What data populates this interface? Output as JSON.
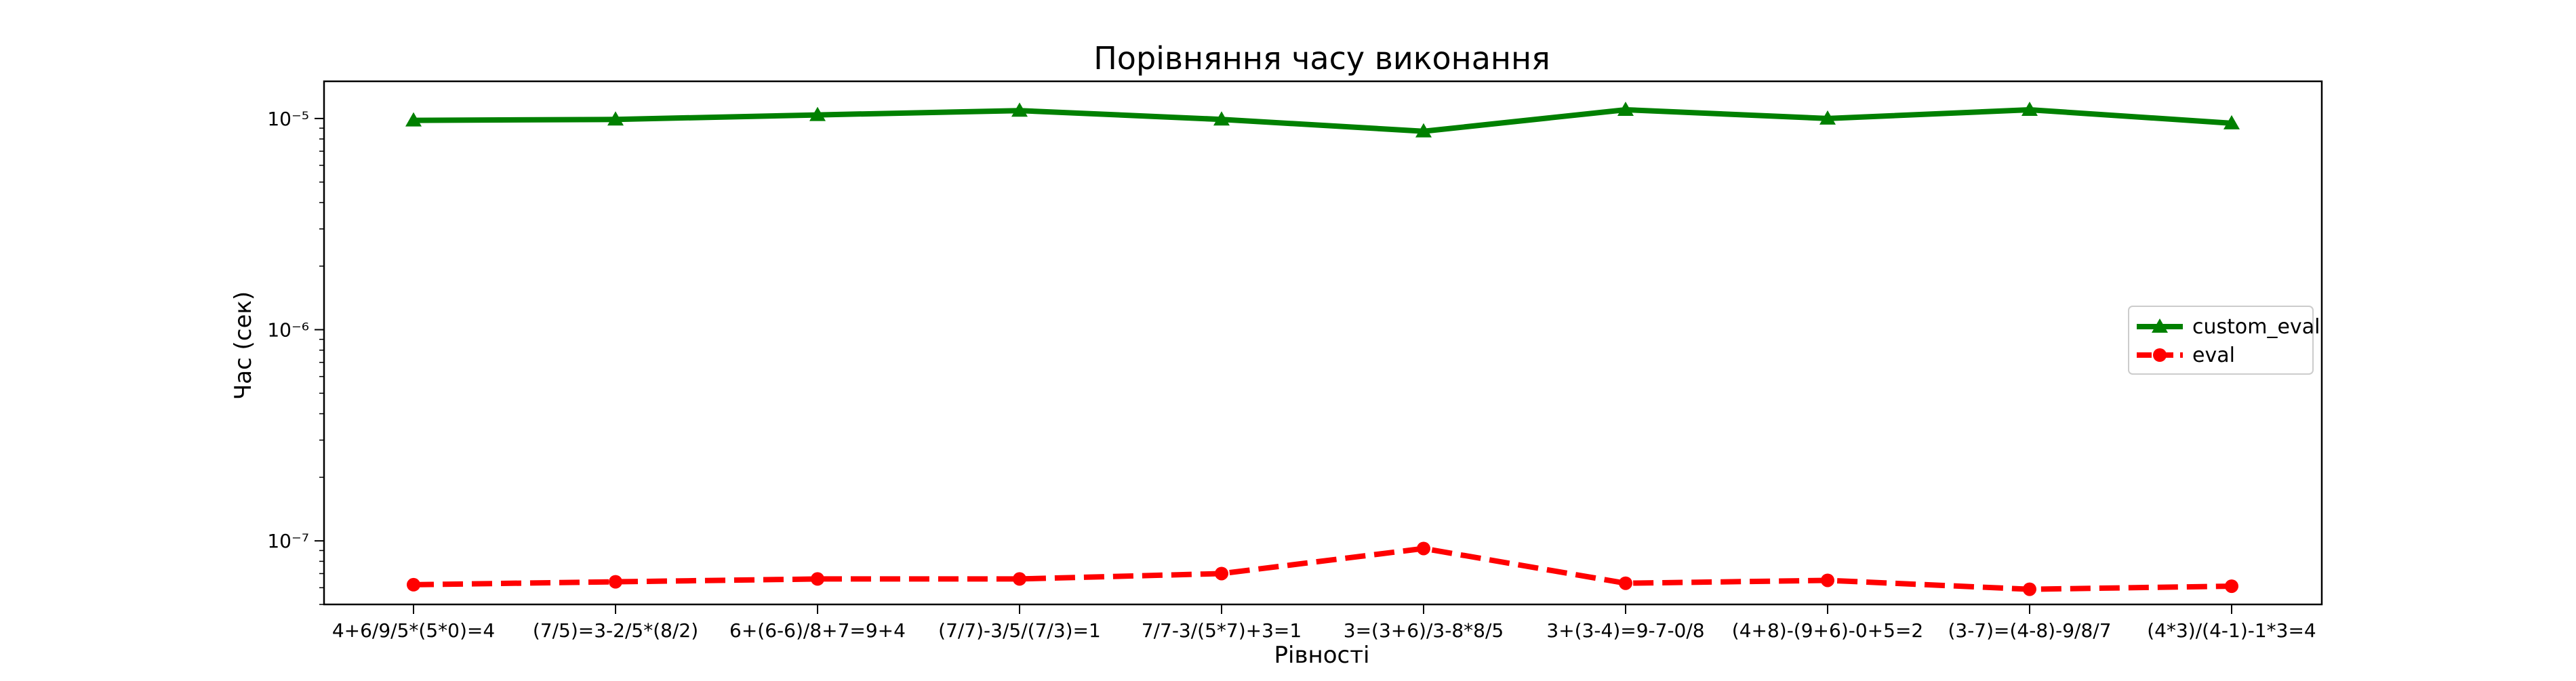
{
  "chart_data": {
    "type": "line",
    "title": "Порівняння часу виконання",
    "xlabel": "Рівності",
    "ylabel": "Час (сек)",
    "yscale": "log",
    "ylim": [
      5e-08,
      1.5e-05
    ],
    "y_tick_labels": [
      {
        "value": 1e-07,
        "label": "10⁻⁷"
      },
      {
        "value": 1e-06,
        "label": "10⁻⁶"
      },
      {
        "value": 1e-05,
        "label": "10⁻⁵"
      }
    ],
    "grid": false,
    "legend": {
      "placement": "center-right"
    },
    "categories": [
      "4+6/9/5*(5*0)=4",
      "(7/5)=3-2/5*(8/2)",
      "6+(6-6)/8+7=9+4",
      "(7/7)-3/5/(7/3)=1",
      "7/7-3/(5*7)+3=1",
      "3=(3+6)/3-8*8/5",
      "3+(3-4)=9-7-0/8",
      "(4+8)-(9+6)-0+5=2",
      "(3-7)=(4-8)-9/8/7",
      "(4*3)/(4-1)-1*3=4"
    ],
    "series": [
      {
        "name": "custom_eval",
        "color": "#008000",
        "marker": "triangle",
        "linestyle": "solid",
        "values": [
          9.8e-06,
          9.9e-06,
          1.04e-05,
          1.09e-05,
          9.9e-06,
          8.7e-06,
          1.1e-05,
          1e-05,
          1.1e-05,
          9.5e-06
        ]
      },
      {
        "name": "eval",
        "color": "#ff0000",
        "marker": "circle",
        "linestyle": "dashed",
        "values": [
          6.2e-08,
          6.4e-08,
          6.6e-08,
          6.6e-08,
          7e-08,
          9.2e-08,
          6.3e-08,
          6.5e-08,
          5.9e-08,
          6.1e-08
        ]
      }
    ]
  }
}
